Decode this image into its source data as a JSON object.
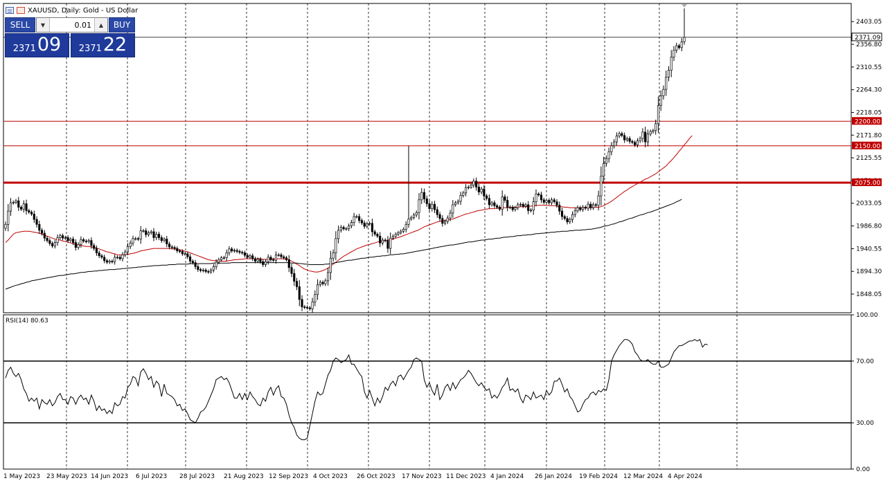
{
  "header": {
    "title": "XAUUSD, Daily:  Gold - US Dollar",
    "icons": [
      "chart-list-icon",
      "chart-window-icon"
    ]
  },
  "trade_panel": {
    "sell_label": "SELL",
    "buy_label": "BUY",
    "lot": "0.01",
    "sell_price_small": "2371",
    "sell_price_big": "09",
    "buy_price_small": "2371",
    "buy_price_big": "22",
    "colors": {
      "button": "#2a48a6",
      "quote": "#1f3a9a"
    }
  },
  "rsi_label": "RSI(14) 80.63",
  "chart_data": [
    {
      "type": "candlestick",
      "symbol": "XAUUSD",
      "timeframe": "Daily",
      "ylim": [
        1810,
        2440
      ],
      "y_ticks": [
        "2403.05",
        "2356.80",
        "2310.55",
        "2264.30",
        "2218.05",
        "2171.80",
        "2125.55",
        "2079.30",
        "2033.05",
        "1986.80",
        "1940.55",
        "1894.30",
        "1848.05"
      ],
      "x_ticks": [
        "1 May 2023",
        "23 May 2023",
        "14 Jun 2023",
        "6 Jul 2023",
        "28 Jul 2023",
        "21 Aug 2023",
        "12 Sep 2023",
        "4 Oct 2023",
        "26 Oct 2023",
        "17 Nov 2023",
        "11 Dec 2023",
        "4 Jan 2024",
        "26 Jan 2024",
        "19 Feb 2024",
        "12 Mar 2024",
        "4 Apr 2024"
      ],
      "current_price": {
        "value": 2371.09,
        "label": "2371.09"
      },
      "horizontal_levels": [
        {
          "value": 2200,
          "label": "2200.00",
          "color": "#c00000"
        },
        {
          "value": 2150,
          "label": "2150.00",
          "color": "#c00000"
        },
        {
          "value": 2075,
          "label": "2075.00",
          "color": "#c00000",
          "bold": true
        }
      ],
      "candles_close": [
        1990,
        2017,
        2034,
        2035,
        2038,
        2025,
        2021,
        2032,
        2018,
        2015,
        2011,
        2000,
        1990,
        1978,
        1972,
        1962,
        1957,
        1951,
        1946,
        1953,
        1963,
        1967,
        1962,
        1963,
        1957,
        1960,
        1953,
        1943,
        1949,
        1959,
        1956,
        1955,
        1957,
        1947,
        1941,
        1932,
        1926,
        1923,
        1916,
        1913,
        1915,
        1914,
        1923,
        1923,
        1920,
        1928,
        1934,
        1945,
        1952,
        1961,
        1961,
        1960,
        1977,
        1977,
        1969,
        1973,
        1975,
        1963,
        1970,
        1963,
        1957,
        1960,
        1950,
        1944,
        1943,
        1941,
        1936,
        1935,
        1930,
        1930,
        1924,
        1915,
        1912,
        1904,
        1898,
        1896,
        1897,
        1894,
        1893,
        1897,
        1904,
        1913,
        1918,
        1922,
        1922,
        1932,
        1940,
        1936,
        1937,
        1935,
        1933,
        1932,
        1927,
        1923,
        1926,
        1920,
        1915,
        1919,
        1914,
        1908,
        1914,
        1923,
        1918,
        1917,
        1928,
        1928,
        1924,
        1922,
        1918,
        1902,
        1890,
        1874,
        1863,
        1837,
        1822,
        1821,
        1820,
        1818,
        1832,
        1847,
        1867,
        1872,
        1869,
        1875,
        1892,
        1921,
        1932,
        1961,
        1978,
        1984,
        1981,
        1981,
        1987,
        1994,
        2006,
        2006,
        1998,
        1993,
        1986,
        1991,
        1992,
        1975,
        1970,
        1966,
        1952,
        1958,
        1957,
        1941,
        1962,
        1966,
        1970,
        1973,
        1976,
        1980,
        1990,
        2001,
        2004,
        2009,
        2014,
        2040,
        2055,
        2042,
        2032,
        2022,
        2031,
        2020,
        2010,
        2002,
        1992,
        1996,
        2003,
        2013,
        2030,
        2034,
        2037,
        2049,
        2054,
        2065,
        2066,
        2070,
        2078,
        2066,
        2056,
        2062,
        2048,
        2043,
        2030,
        2034,
        2028,
        2025,
        2021,
        2046,
        2039,
        2025,
        2025,
        2020,
        2024,
        2030,
        2031,
        2027,
        2030,
        2018,
        2019,
        2036,
        2052,
        2050,
        2040,
        2035,
        2039,
        2034,
        2040,
        2036,
        2029,
        2017,
        2006,
        2002,
        1995,
        2000,
        2010,
        2018,
        2024,
        2020,
        2025,
        2023,
        2031,
        2024,
        2030,
        2029,
        2048,
        2088,
        2114,
        2124,
        2138,
        2150,
        2158,
        2170,
        2175,
        2171,
        2162,
        2165,
        2159,
        2157,
        2152,
        2160,
        2165,
        2178,
        2158,
        2174,
        2179,
        2181,
        2195,
        2232,
        2252,
        2265,
        2290,
        2304,
        2331,
        2345,
        2354,
        2350,
        2362,
        2371.09
      ],
      "series": [
        {
          "name": "",
          "type": "moving-average",
          "color": "#c00000",
          "values": [
            1953,
            1958,
            1964,
            1970,
            1973,
            1974,
            1975,
            1976,
            1976,
            1976,
            1975,
            1974,
            1973,
            1972,
            1970,
            1968,
            1966,
            1964,
            1962,
            1960,
            1959,
            1958,
            1956,
            1955,
            1954,
            1952,
            1951,
            1949,
            1948,
            1947,
            1946,
            1945,
            1945,
            1944,
            1943,
            1942,
            1940,
            1938,
            1936,
            1934,
            1933,
            1931,
            1930,
            1928,
            1928,
            1928,
            1928,
            1929,
            1930,
            1931,
            1932,
            1934,
            1936,
            1937,
            1938,
            1939,
            1940,
            1941,
            1941,
            1941,
            1941,
            1941,
            1941,
            1941,
            1940,
            1940,
            1939,
            1938,
            1937,
            1935,
            1934,
            1932,
            1930,
            1928,
            1926,
            1924,
            1922,
            1920,
            1918,
            1917,
            1916,
            1916,
            1915,
            1915,
            1915,
            1915,
            1916,
            1917,
            1918,
            1918,
            1919,
            1919,
            1920,
            1920,
            1920,
            1920,
            1920,
            1920,
            1920,
            1919,
            1919,
            1919,
            1919,
            1920,
            1920,
            1920,
            1920,
            1920,
            1919,
            1918,
            1915,
            1912,
            1909,
            1906,
            1902,
            1899,
            1897,
            1895,
            1894,
            1893,
            1893,
            1894,
            1896,
            1898,
            1901,
            1905,
            1909,
            1913,
            1917,
            1921,
            1925,
            1928,
            1931,
            1934,
            1937,
            1940,
            1942,
            1944,
            1946,
            1948,
            1949,
            1951,
            1952,
            1954,
            1955,
            1956,
            1957,
            1958,
            1959,
            1960,
            1962,
            1963,
            1965,
            1967,
            1969,
            1971,
            1973,
            1975,
            1977,
            1979,
            1982,
            1985,
            1987,
            1989,
            1991,
            1993,
            1995,
            1996,
            1997,
            1998,
            1999,
            2000,
            2001,
            2003,
            2005,
            2007,
            2009,
            2011,
            2012,
            2014,
            2015,
            2017,
            2018,
            2019,
            2020,
            2021,
            2022,
            2022,
            2022,
            2023,
            2023,
            2024,
            2024,
            2024,
            2025,
            2025,
            2025,
            2025,
            2026,
            2026,
            2026,
            2027,
            2027,
            2028,
            2028,
            2029,
            2029,
            2029,
            2029,
            2028,
            2028,
            2028,
            2027,
            2026,
            2026,
            2025,
            2025,
            2024,
            2024,
            2024,
            2024,
            2024,
            2024,
            2024,
            2024,
            2024,
            2024,
            2025,
            2025,
            2026,
            2028,
            2031,
            2034,
            2037,
            2041,
            2045,
            2049,
            2053,
            2057,
            2060,
            2064,
            2067,
            2070,
            2073,
            2076,
            2079,
            2082,
            2084,
            2087,
            2090,
            2093,
            2097,
            2101,
            2105,
            2109,
            2115,
            2120,
            2126,
            2132,
            2139,
            2145,
            2152,
            2158,
            2165,
            2171
          ]
        },
        {
          "name": "",
          "type": "moving-average",
          "color": "#000000",
          "values": [
            1858,
            1860,
            1862,
            1864,
            1866,
            1867,
            1869,
            1870,
            1872,
            1873,
            1875,
            1876,
            1877,
            1878,
            1879,
            1880,
            1881,
            1882,
            1883,
            1884,
            1885,
            1886,
            1886,
            1887,
            1888,
            1889,
            1889,
            1890,
            1891,
            1892,
            1892,
            1893,
            1894,
            1894,
            1895,
            1895,
            1896,
            1896,
            1897,
            1897,
            1898,
            1898,
            1898,
            1899,
            1899,
            1900,
            1900,
            1901,
            1901,
            1902,
            1902,
            1903,
            1903,
            1904,
            1904,
            1905,
            1905,
            1906,
            1906,
            1906,
            1907,
            1907,
            1907,
            1908,
            1908,
            1908,
            1909,
            1909,
            1909,
            1909,
            1909,
            1910,
            1910,
            1910,
            1910,
            1910,
            1910,
            1910,
            1910,
            1910,
            1911,
            1911,
            1911,
            1911,
            1911,
            1911,
            1911,
            1912,
            1912,
            1912,
            1912,
            1912,
            1912,
            1912,
            1912,
            1912,
            1912,
            1912,
            1912,
            1912,
            1912,
            1912,
            1912,
            1912,
            1912,
            1912,
            1912,
            1912,
            1912,
            1912,
            1911,
            1911,
            1911,
            1910,
            1910,
            1909,
            1909,
            1908,
            1908,
            1908,
            1908,
            1908,
            1908,
            1909,
            1909,
            1910,
            1911,
            1912,
            1913,
            1914,
            1915,
            1916,
            1917,
            1917,
            1918,
            1919,
            1920,
            1921,
            1921,
            1922,
            1923,
            1923,
            1924,
            1925,
            1925,
            1926,
            1926,
            1927,
            1928,
            1928,
            1929,
            1929,
            1930,
            1930,
            1931,
            1932,
            1933,
            1934,
            1935,
            1936,
            1937,
            1938,
            1939,
            1940,
            1941,
            1942,
            1943,
            1944,
            1945,
            1946,
            1947,
            1948,
            1948,
            1949,
            1950,
            1951,
            1952,
            1953,
            1954,
            1954,
            1955,
            1956,
            1957,
            1958,
            1958,
            1959,
            1960,
            1960,
            1961,
            1962,
            1962,
            1963,
            1964,
            1964,
            1965,
            1965,
            1966,
            1967,
            1967,
            1968,
            1968,
            1969,
            1969,
            1970,
            1971,
            1971,
            1972,
            1972,
            1973,
            1973,
            1974,
            1974,
            1975,
            1975,
            1976,
            1976,
            1976,
            1977,
            1977,
            1978,
            1978,
            1978,
            1979,
            1979,
            1980,
            1980,
            1981,
            1982,
            1983,
            1984,
            1986,
            1987,
            1988,
            1990,
            1991,
            1993,
            1995,
            1996,
            1998,
            2000,
            2002,
            2003,
            2005,
            2007,
            2009,
            2010,
            2012,
            2014,
            2015,
            2017,
            2019,
            2021,
            2023,
            2025,
            2027,
            2029,
            2031,
            2033,
            2036,
            2038,
            2041
          ]
        }
      ]
    },
    {
      "type": "line",
      "title": "RSI(14) 80.63",
      "ylim": [
        0,
        100
      ],
      "y_ticks": [
        "100.00",
        "70.00",
        "30.00",
        "0.00"
      ],
      "levels": [
        70,
        30
      ],
      "series": [
        {
          "name": "",
          "color": "#000000",
          "values": [
            59,
            64,
            66,
            62,
            60,
            62,
            58,
            52,
            49,
            44,
            46,
            44,
            46,
            39,
            45,
            43,
            42,
            45,
            41,
            43,
            47,
            49,
            45,
            45,
            42,
            47,
            46,
            42,
            46,
            48,
            45,
            46,
            42,
            48,
            44,
            38,
            41,
            38,
            39,
            36,
            38,
            36,
            43,
            41,
            42,
            47,
            46,
            53,
            55,
            60,
            59,
            54,
            63,
            65,
            62,
            58,
            60,
            53,
            57,
            55,
            47,
            55,
            49,
            48,
            47,
            45,
            41,
            42,
            38,
            39,
            36,
            32,
            31,
            30,
            33,
            37,
            38,
            40,
            44,
            48,
            52,
            58,
            59,
            60,
            58,
            59,
            56,
            51,
            46,
            46,
            49,
            45,
            49,
            45,
            50,
            47,
            45,
            42,
            41,
            46,
            44,
            50,
            53,
            48,
            52,
            54,
            47,
            46,
            42,
            35,
            30,
            27,
            22,
            20,
            19,
            19,
            20,
            28,
            36,
            44,
            50,
            48,
            49,
            55,
            61,
            64,
            70,
            72,
            71,
            69,
            70,
            71,
            74,
            68,
            68,
            65,
            62,
            60,
            50,
            46,
            51,
            46,
            41,
            46,
            43,
            47,
            53,
            51,
            55,
            57,
            54,
            60,
            61,
            58,
            61,
            64,
            66,
            71,
            72,
            71,
            70,
            58,
            53,
            56,
            51,
            48,
            55,
            45,
            48,
            53,
            55,
            51,
            56,
            52,
            55,
            58,
            59,
            61,
            64,
            62,
            59,
            56,
            54,
            56,
            53,
            51,
            52,
            46,
            48,
            46,
            49,
            53,
            55,
            59,
            51,
            52,
            50,
            52,
            46,
            43,
            48,
            47,
            45,
            50,
            46,
            47,
            48,
            45,
            51,
            48,
            50,
            57,
            57,
            59,
            55,
            50,
            52,
            47,
            45,
            41,
            37,
            38,
            42,
            45,
            46,
            49,
            50,
            48,
            51,
            50,
            52,
            51,
            58,
            70,
            74,
            77,
            80,
            82,
            84,
            84,
            83,
            81,
            76,
            74,
            71,
            70,
            70,
            71,
            69,
            68,
            68,
            70,
            66,
            66,
            67,
            68,
            72,
            76,
            78,
            80,
            80,
            81,
            82,
            83,
            83,
            84,
            83,
            84,
            79,
            81,
            80.63
          ]
        }
      ]
    }
  ]
}
